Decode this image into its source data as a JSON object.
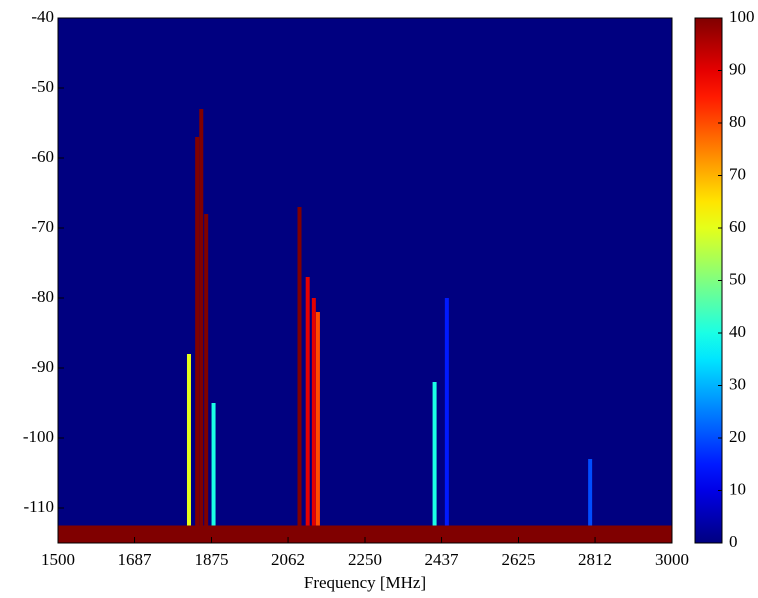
{
  "chart_data": {
    "type": "heatmap",
    "colormap": "jet",
    "x_label": "Frequency [MHz]",
    "xlim": [
      1500,
      3000
    ],
    "xticks": [
      1500,
      1687,
      1875,
      2062,
      2250,
      2437,
      2625,
      2812,
      3000
    ],
    "ylim": [
      -115,
      -40
    ],
    "yticks": [
      -110,
      -100,
      -90,
      -80,
      -70,
      -60,
      -50,
      -40
    ],
    "clim": [
      0,
      100
    ],
    "cticks": [
      0,
      10,
      20,
      30,
      40,
      50,
      60,
      70,
      80,
      90,
      100
    ],
    "floor_level": -112.5,
    "floor_occupancy": 100,
    "signals": [
      {
        "frequency": 1820,
        "top": -88,
        "occupancy": 60
      },
      {
        "frequency": 1840,
        "top": -57,
        "occupancy": 100
      },
      {
        "frequency": 1850,
        "top": -53,
        "occupancy": 100
      },
      {
        "frequency": 1862,
        "top": -68,
        "occupancy": 100
      },
      {
        "frequency": 1880,
        "top": -95,
        "occupancy": 40
      },
      {
        "frequency": 2090,
        "top": -67,
        "occupancy": 100
      },
      {
        "frequency": 2110,
        "top": -77,
        "occupancy": 90
      },
      {
        "frequency": 2125,
        "top": -80,
        "occupancy": 90
      },
      {
        "frequency": 2135,
        "top": -82,
        "occupancy": 80
      },
      {
        "frequency": 2420,
        "top": -92,
        "occupancy": 40
      },
      {
        "frequency": 2450,
        "top": -80,
        "occupancy": 15
      },
      {
        "frequency": 2800,
        "top": -103,
        "occupancy": 20
      }
    ]
  }
}
